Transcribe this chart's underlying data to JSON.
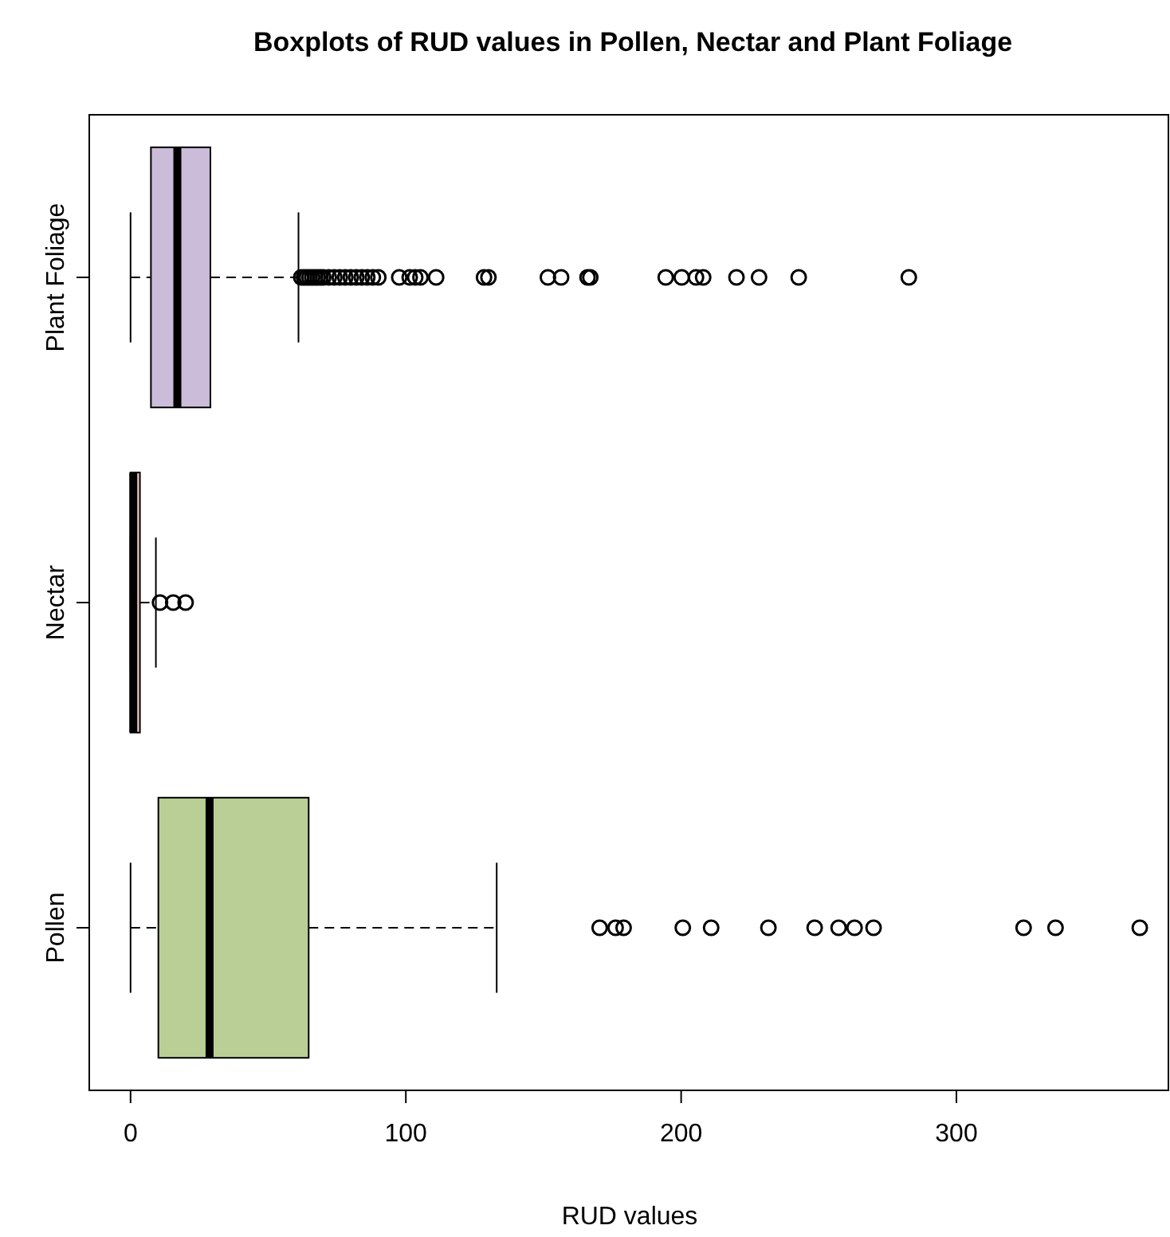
{
  "chart_data": {
    "type": "box",
    "orientation": "horizontal",
    "title": "Boxplots of RUD values in Pollen, Nectar and Plant Foliage",
    "xlabel": "RUD values",
    "categories": [
      "Plant Foliage",
      "Nectar",
      "Pollen"
    ],
    "colors": [
      "#cbbcd9",
      "#f0c8c8",
      "#b9cf96"
    ],
    "xlim": [
      -15,
      377
    ],
    "xticks": [
      0,
      100,
      200,
      300
    ],
    "grid": false,
    "boxes": [
      {
        "low": 0,
        "q1": 7.4,
        "median": 17,
        "q3": 29,
        "high": 61,
        "outliers": [
          62,
          63,
          64,
          65,
          66,
          67,
          68,
          69,
          70,
          72,
          74,
          76,
          78,
          80,
          82,
          84,
          86,
          88,
          90,
          97.6,
          101.4,
          103.4,
          105.3,
          111,
          128.4,
          130,
          151.6,
          156.4,
          166,
          167,
          194.4,
          200.2,
          205.4,
          208,
          220.1,
          228.3,
          242.7,
          282.7
        ]
      },
      {
        "low": 0,
        "q1": 0,
        "median": 1,
        "q3": 3.4,
        "high": 9.2,
        "outliers": [
          10.7,
          15.5,
          20
        ]
      },
      {
        "low": 0,
        "q1": 10.1,
        "median": 28.7,
        "q3": 64.7,
        "high": 133,
        "outliers": [
          170.4,
          176.2,
          179.1,
          200.6,
          210.9,
          231.7,
          248.5,
          257.2,
          263,
          269.9,
          324.4,
          336,
          366.6
        ]
      }
    ]
  }
}
